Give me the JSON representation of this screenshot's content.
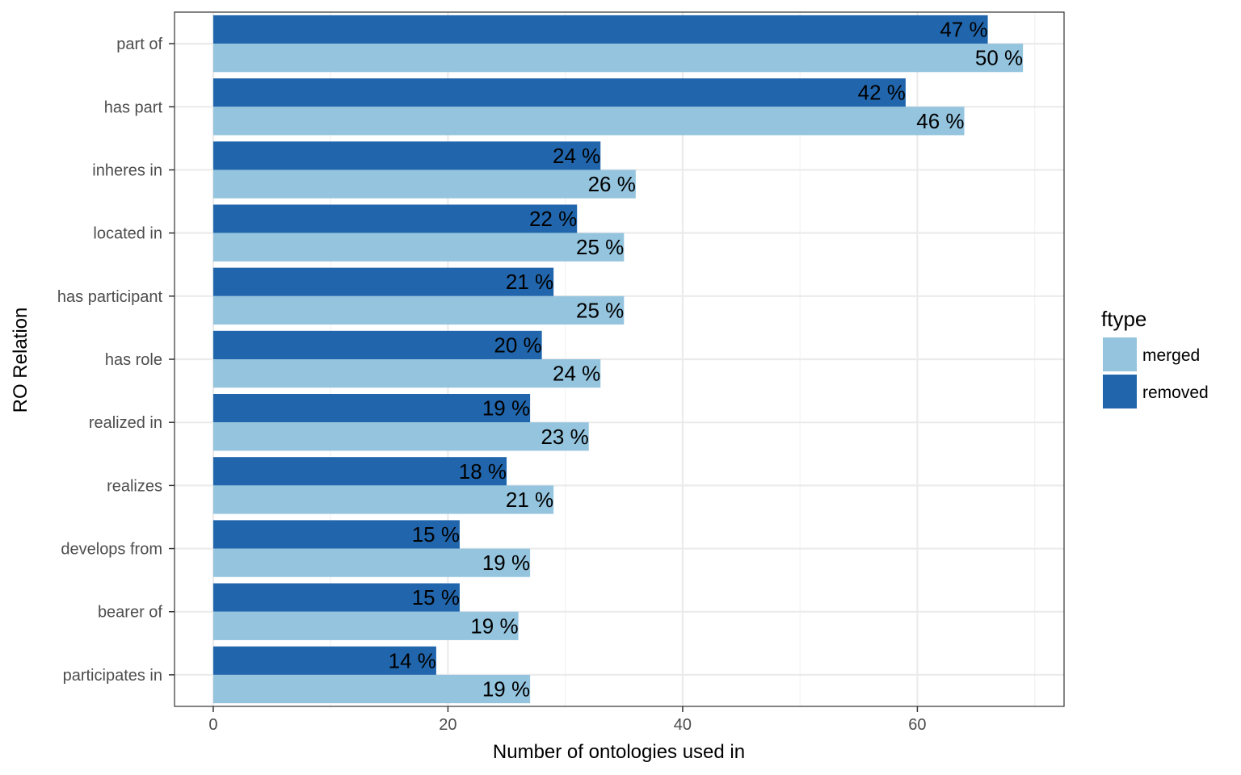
{
  "chart_data": {
    "type": "bar",
    "orientation": "horizontal",
    "categories": [
      "part of",
      "has part",
      "inheres in",
      "located in",
      "has participant",
      "has role",
      "realized in",
      "realizes",
      "develops from",
      "bearer of",
      "participates in"
    ],
    "series": [
      {
        "name": "removed",
        "color": "#2166ac",
        "values": [
          66,
          59,
          33,
          31,
          29,
          28,
          27,
          25,
          21,
          21,
          19
        ],
        "labels": [
          "47 %",
          "42 %",
          "24 %",
          "22 %",
          "21 %",
          "20 %",
          "19 %",
          "18 %",
          "15 %",
          "15 %",
          "14 %"
        ]
      },
      {
        "name": "merged",
        "color": "#94c4de",
        "values": [
          69,
          64,
          36,
          35,
          35,
          33,
          32,
          29,
          27,
          26,
          27
        ],
        "labels": [
          "50 %",
          "46 %",
          "26 %",
          "25 %",
          "25 %",
          "24 %",
          "23 %",
          "21 %",
          "19 %",
          "19 %",
          "19 %"
        ]
      }
    ],
    "title": "",
    "xlabel": "Number of ontologies used in",
    "ylabel": "RO Relation",
    "xlim": [
      -3.3,
      72.5
    ],
    "xticks": [
      0,
      20,
      40,
      60
    ],
    "grid": true,
    "legend": {
      "title": "ftype",
      "position": "right",
      "entries": [
        {
          "label": "merged",
          "color": "#94c4de"
        },
        {
          "label": "removed",
          "color": "#2166ac"
        }
      ]
    }
  }
}
